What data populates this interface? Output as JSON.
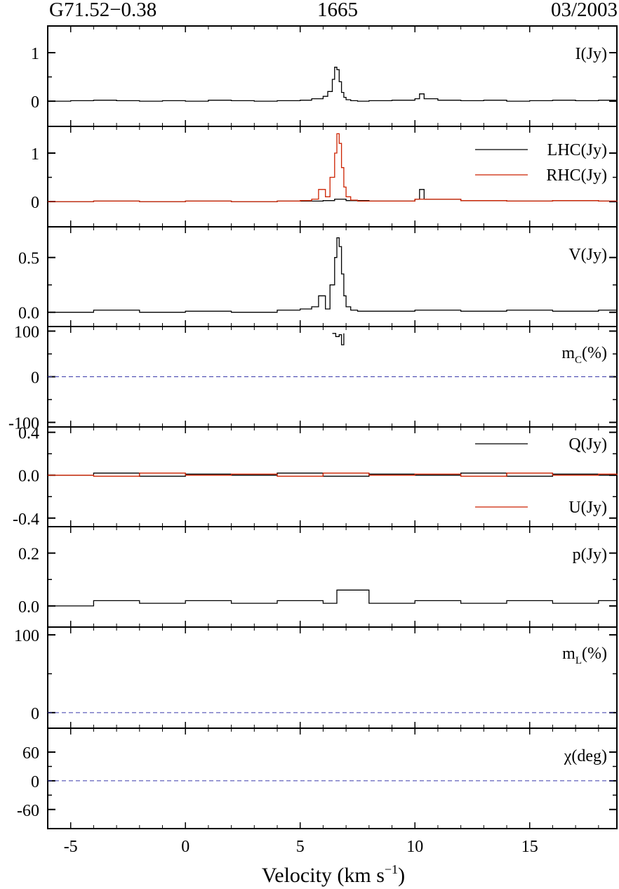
{
  "header": {
    "source": "G71.52−0.38",
    "frequency": "1665",
    "epoch": "03/2003"
  },
  "colors": {
    "primary": "#000000",
    "secondary": "#cc2200",
    "reference": "#3a3aaa"
  },
  "chart_data": {
    "type": "line",
    "xlabel": "Velocity (km s",
    "xlabel_sup": "−1",
    "xlabel_close": ")",
    "xlim": [
      -6,
      18.8
    ],
    "xticks": [
      -5,
      0,
      5,
      10,
      15
    ],
    "xtick_labels": [
      "-5",
      "0",
      "5",
      "10",
      "15"
    ],
    "panels": [
      {
        "label": "I(Jy)",
        "ylim": [
          -0.52,
          1.55
        ],
        "yticks": [
          0,
          1
        ],
        "ytick_labels": [
          "0",
          "1"
        ],
        "series": [
          {
            "color": "primary",
            "x": [
              -6,
              -5,
              -4,
              -3,
              -2,
              -1,
              0,
              1,
              2,
              3,
              4,
              5,
              5.5,
              6,
              6.2,
              6.4,
              6.5,
              6.6,
              6.7,
              6.8,
              6.9,
              7.0,
              7.2,
              7.5,
              8,
              9,
              10,
              10.2,
              10.4,
              11,
              12,
              13,
              14,
              15,
              16,
              17,
              18,
              18.8
            ],
            "y": [
              0,
              0.01,
              0.02,
              0.01,
              0,
              0.01,
              0,
              0.02,
              0.01,
              0,
              0.01,
              0.02,
              0.05,
              0.1,
              0.2,
              0.45,
              0.7,
              0.65,
              0.4,
              0.18,
              0.08,
              0.03,
              0.01,
              0,
              0.01,
              0.02,
              0.05,
              0.15,
              0.05,
              0.02,
              0.01,
              0.02,
              0,
              0.01,
              0.02,
              0.01,
              0.02,
              0.01
            ]
          }
        ]
      },
      {
        "label": "LHC(Jy)",
        "label2": "RHC(Jy)",
        "ylim": [
          -0.52,
          1.55
        ],
        "yticks": [
          0,
          1
        ],
        "ytick_labels": [
          "0",
          "1"
        ],
        "series": [
          {
            "color": "primary",
            "name": "LHC(Jy)",
            "x": [
              -6,
              -4,
              -2,
              0,
              2,
              4,
              6,
              6.5,
              7,
              8,
              10,
              10.2,
              10.4,
              12,
              14,
              16,
              18,
              18.8
            ],
            "y": [
              0,
              0.01,
              0,
              0.01,
              0,
              0.01,
              0.02,
              0.05,
              0.02,
              0.01,
              0.05,
              0.25,
              0.05,
              0.02,
              0.01,
              0.02,
              0.01,
              0
            ]
          },
          {
            "color": "secondary",
            "name": "RHC(Jy)",
            "x": [
              -6,
              -4,
              -2,
              0,
              2,
              4,
              5,
              5.5,
              5.8,
              6.1,
              6.3,
              6.5,
              6.6,
              6.7,
              6.8,
              6.9,
              7.0,
              7.2,
              7.5,
              8,
              10,
              12,
              14,
              16,
              18,
              18.8
            ],
            "y": [
              0,
              0.01,
              0,
              0.01,
              0,
              0.01,
              0.02,
              0.05,
              0.25,
              0.1,
              0.5,
              1.0,
              1.4,
              1.2,
              0.7,
              0.3,
              0.1,
              0.03,
              0.01,
              0.01,
              0.05,
              0.02,
              0.01,
              0.02,
              0.01,
              0
            ]
          }
        ]
      },
      {
        "label": "V(Jy)",
        "ylim": [
          -0.13,
          0.78
        ],
        "yticks": [
          0.0,
          0.5
        ],
        "ytick_labels": [
          "0.0",
          "0.5"
        ],
        "series": [
          {
            "color": "primary",
            "x": [
              -6,
              -4,
              -2,
              0,
              2,
              4,
              5,
              5.5,
              5.8,
              6.1,
              6.3,
              6.5,
              6.6,
              6.7,
              6.8,
              6.9,
              7.0,
              7.2,
              7.5,
              8,
              10,
              12,
              14,
              16,
              18,
              18.8
            ],
            "y": [
              0,
              0.02,
              0,
              0.01,
              0,
              0.02,
              0.03,
              0.05,
              0.15,
              0.03,
              0.25,
              0.5,
              0.68,
              0.6,
              0.35,
              0.15,
              0.05,
              0.02,
              0.01,
              0.01,
              0.02,
              0.01,
              0.02,
              0.01,
              0.02,
              0
            ]
          }
        ]
      },
      {
        "label": "m",
        "label_sub": "C",
        "label_tail": "(%)",
        "ylim": [
          -110,
          110
        ],
        "yticks": [
          -100,
          0,
          100
        ],
        "ytick_labels": [
          "-100",
          "0",
          "100"
        ],
        "reference_y": 0,
        "series": [
          {
            "color": "primary",
            "x": [
              6.4,
              6.55,
              6.7,
              6.8,
              6.9
            ],
            "y": [
              95,
              88,
              92,
              70,
              95
            ]
          }
        ]
      },
      {
        "label": "Q(Jy)",
        "label2": "U(Jy)",
        "ylim": [
          -0.48,
          0.45
        ],
        "yticks": [
          -0.4,
          0.0,
          0.4
        ],
        "ytick_labels": [
          "-0.4",
          "0.0",
          "0.4"
        ],
        "series": [
          {
            "color": "primary",
            "name": "Q(Jy)",
            "x": [
              -6,
              -4,
              -2,
              0,
              2,
              4,
              6,
              8,
              10,
              12,
              14,
              16,
              18,
              18.8
            ],
            "y": [
              0,
              0.02,
              -0.01,
              0.01,
              0,
              0.02,
              -0.01,
              0.01,
              0,
              0.02,
              -0.01,
              0.01,
              0,
              0
            ]
          },
          {
            "color": "secondary",
            "name": "U(Jy)",
            "x": [
              -6,
              -4,
              -2,
              0,
              2,
              4,
              6,
              8,
              10,
              12,
              14,
              16,
              18,
              18.8
            ],
            "y": [
              0,
              -0.01,
              0.02,
              0,
              0.01,
              -0.01,
              0.02,
              0,
              0.01,
              -0.01,
              0.02,
              0,
              0.01,
              0
            ]
          }
        ]
      },
      {
        "label": "p(Jy)",
        "ylim": [
          -0.08,
          0.3
        ],
        "yticks": [
          0.0,
          0.2
        ],
        "ytick_labels": [
          "0.0",
          "0.2"
        ],
        "series": [
          {
            "color": "primary",
            "x": [
              -6,
              -4,
              -2,
              0,
              2,
              4,
              6,
              6.6,
              8,
              10,
              12,
              14,
              16,
              18,
              18.8
            ],
            "y": [
              0,
              0.02,
              0.01,
              0.02,
              0.01,
              0.02,
              0.01,
              0.06,
              0.01,
              0.02,
              0.01,
              0.02,
              0.01,
              0.02,
              0
            ]
          }
        ]
      },
      {
        "label": "m",
        "label_sub": "L",
        "label_tail": "(%)",
        "ylim": [
          -20,
          110
        ],
        "yticks": [
          0,
          100
        ],
        "ytick_labels": [
          "0",
          "100"
        ],
        "reference_y": 0,
        "series": []
      },
      {
        "label": "χ(deg)",
        "ylim": [
          -100,
          110
        ],
        "yticks": [
          -60,
          0,
          60
        ],
        "ytick_labels": [
          "-60",
          "0",
          "60"
        ],
        "reference_y": 0,
        "series": []
      }
    ]
  }
}
